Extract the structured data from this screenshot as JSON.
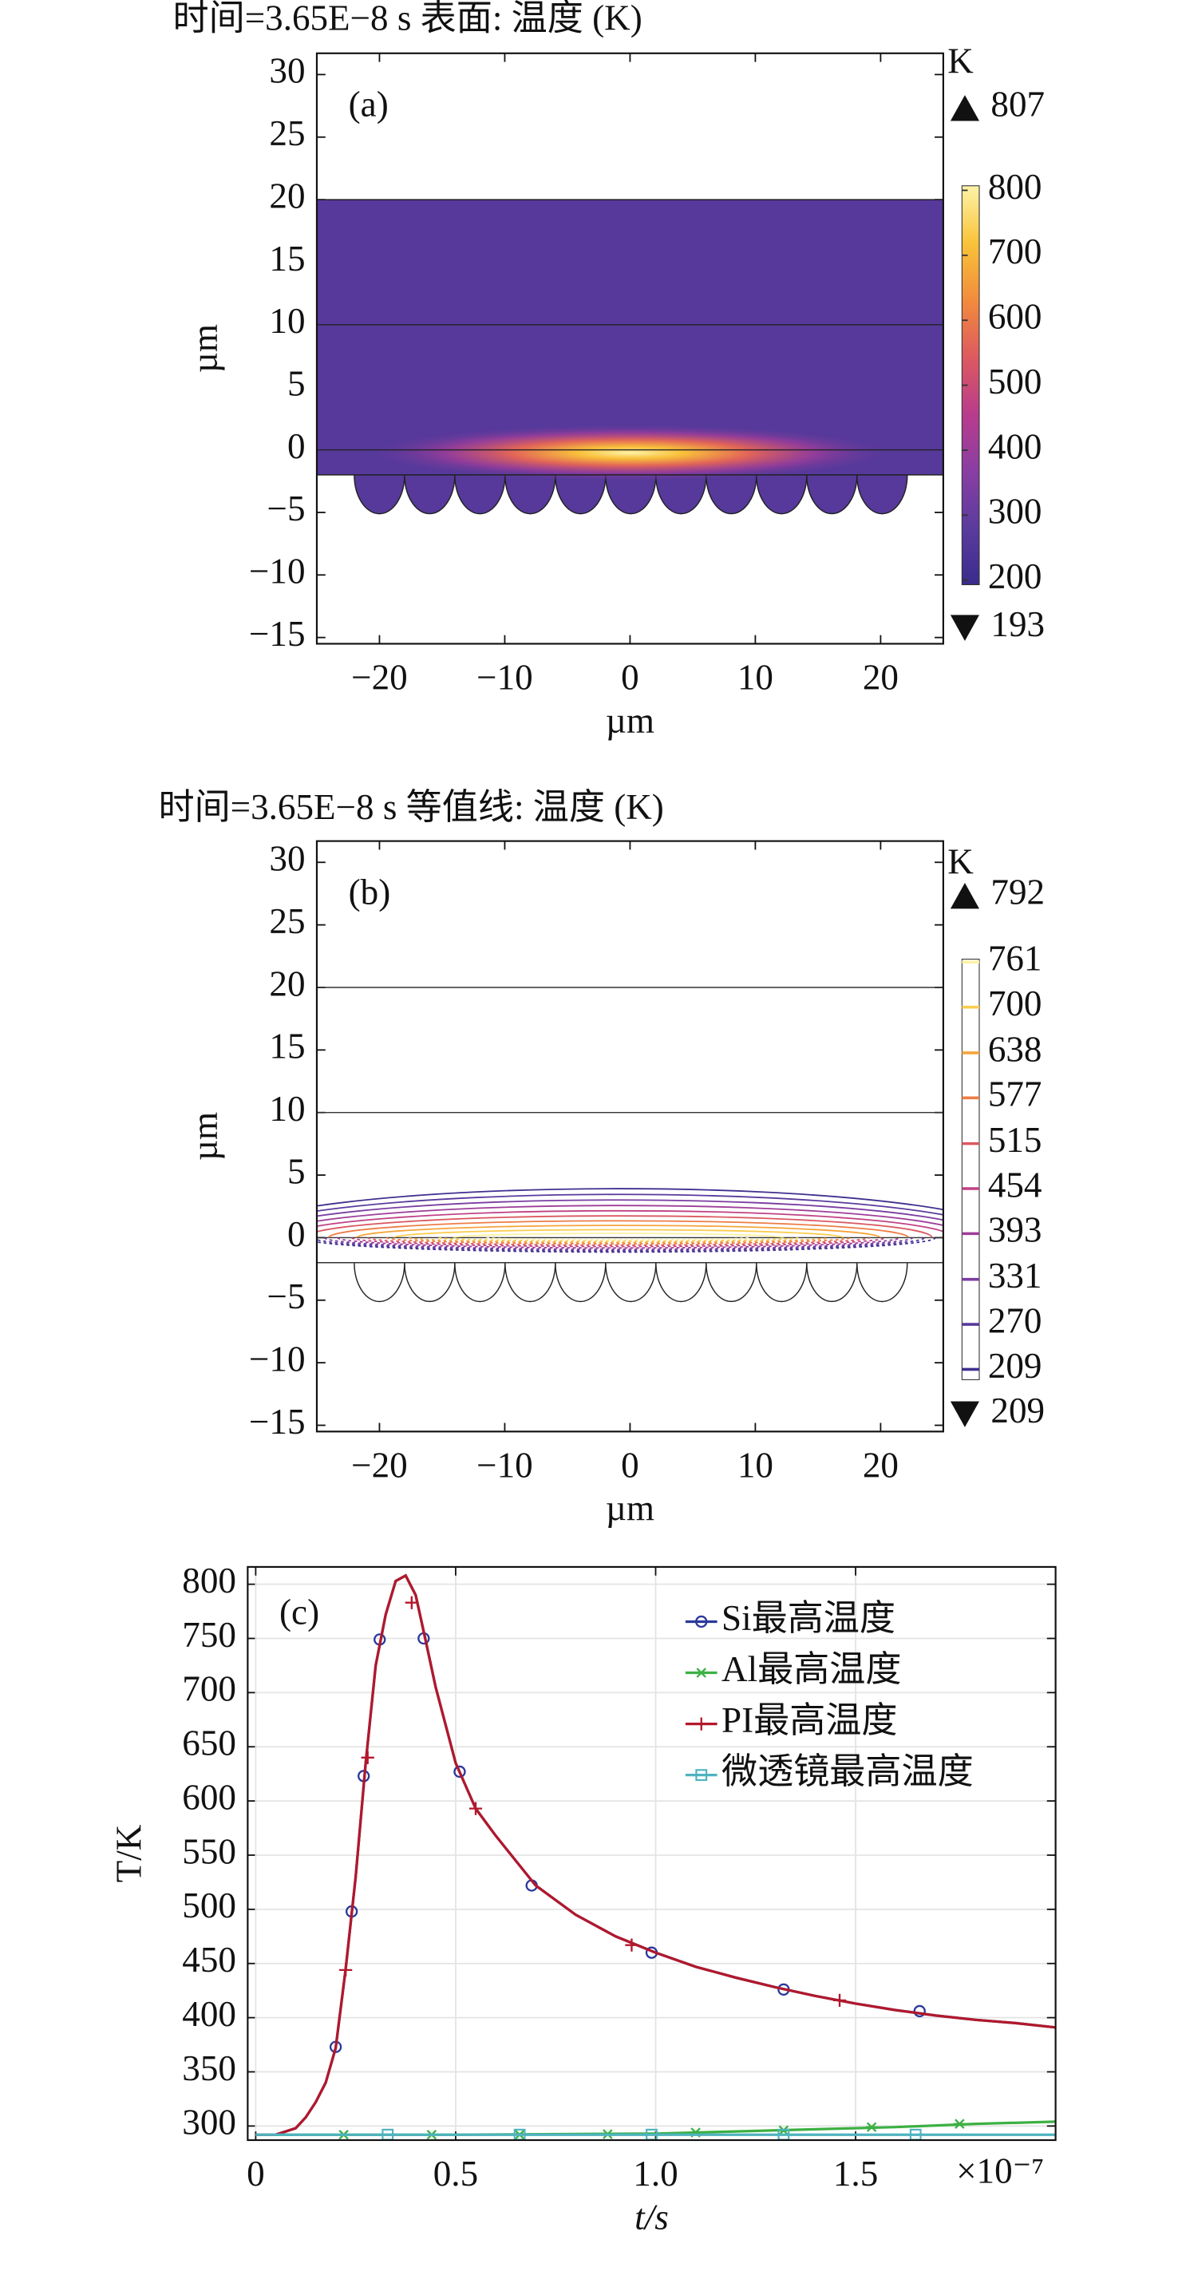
{
  "chart_data": [
    {
      "type": "surface",
      "title": "时间=3.65E−8 s   表面: 温度 (K)",
      "panel_label": "(a)",
      "xlabel": "µm",
      "ylabel": "µm",
      "xlim": [
        -25,
        25
      ],
      "ylim": [
        -15.5,
        31.7
      ],
      "xticks": [
        {
          "value": -20,
          "label": "−20"
        },
        {
          "value": -10,
          "label": "−10"
        },
        0,
        10,
        20
      ],
      "yticks": [
        {
          "value": -15,
          "label": "−15"
        },
        {
          "value": -10,
          "label": "−10"
        },
        {
          "value": -5,
          "label": "−5"
        },
        0,
        5,
        10,
        15,
        20,
        25,
        30
      ],
      "layer_boundaries": [
        20,
        10,
        0,
        -2
      ],
      "colormap": [
        "#3a2c8c",
        "#5b3b9e",
        "#8a3ea3",
        "#b93c8c",
        "#dd5a5f",
        "#f28c3c",
        "#f9c33a",
        "#fdf3a8"
      ],
      "colorbar": {
        "unit": "K",
        "max": 807,
        "min": 193,
        "ticks": [
          200,
          300,
          400,
          500,
          600,
          700,
          800
        ]
      }
    },
    {
      "type": "contour",
      "title": "时间=3.65E−8 s  等值线: 温度 (K)",
      "panel_label": "(b)",
      "xlabel": "µm",
      "ylabel": "µm",
      "xlim": [
        -25,
        25
      ],
      "ylim": [
        -15.5,
        31.7
      ],
      "xticks": [
        {
          "value": -20,
          "label": "−20"
        },
        {
          "value": -10,
          "label": "−10"
        },
        0,
        10,
        20
      ],
      "yticks": [
        {
          "value": -15,
          "label": "−15"
        },
        {
          "value": -10,
          "label": "−10"
        },
        {
          "value": -5,
          "label": "−5"
        },
        0,
        5,
        10,
        15,
        20,
        25,
        30
      ],
      "layer_boundaries": [
        20,
        10,
        0,
        -2
      ],
      "colormap": [
        "#3a2c8c",
        "#5b3b9e",
        "#8a3ea3",
        "#b93c8c",
        "#dd5a5f",
        "#f28c3c",
        "#f9c33a",
        "#fdf3a8"
      ],
      "colorbar": {
        "unit": "K",
        "max": 792,
        "min": 209,
        "clim": [
          195,
          765
        ],
        "ticks": [
          209,
          270,
          331,
          393,
          454,
          515,
          577,
          638,
          700,
          761
        ]
      }
    },
    {
      "type": "line",
      "panel_label": "(c)",
      "xlabel": "t/s",
      "ylabel": "T/K",
      "x_offset_label": "×10⁻⁷",
      "xlim": [
        -0.02,
        2.0
      ],
      "ylim": [
        287,
        816
      ],
      "xticks": [
        0,
        0.5,
        {
          "value": 1,
          "label": "1.0"
        },
        1.5
      ],
      "yticks": [
        300,
        350,
        400,
        450,
        500,
        550,
        600,
        650,
        700,
        750,
        800
      ],
      "grid": true,
      "legend": "upper right",
      "series": [
        {
          "name": "Si最高温度",
          "color": "#2b3a9b",
          "marker": "o",
          "x": [
            0,
            0.05,
            0.1,
            0.125,
            0.15,
            0.175,
            0.2,
            0.225,
            0.25,
            0.275,
            0.3,
            0.325,
            0.35,
            0.375,
            0.4,
            0.425,
            0.45,
            0.5,
            0.55,
            0.6,
            0.7,
            0.8,
            0.9,
            1.0,
            1.1,
            1.2,
            1.3,
            1.4,
            1.5,
            1.6,
            1.7,
            1.8,
            1.9,
            2.0
          ],
          "values": [
            292,
            292,
            298,
            308,
            322,
            340,
            372,
            445,
            530,
            635,
            725,
            772,
            803,
            808,
            790,
            748,
            705,
            635,
            593,
            568,
            522,
            495,
            475,
            460,
            447,
            437,
            428,
            420,
            413,
            407,
            402,
            398,
            395,
            391
          ],
          "markers": {
            "x": [
              0.2,
              0.24,
              0.27,
              0.31,
              0.42,
              0.51,
              0.69,
              0.99,
              1.32,
              1.66
            ],
            "values": [
              373,
              498,
              623,
              749,
              750,
              627,
              522,
              460,
              426,
              406
            ]
          }
        },
        {
          "name": "Al最高温度",
          "color": "#3cb043",
          "marker": "*",
          "x": [
            0,
            0.5,
            1.0,
            1.2,
            1.4,
            1.6,
            1.8,
            2.0
          ],
          "values": [
            292,
            292,
            293,
            295,
            297,
            299,
            302,
            304
          ],
          "markers": {
            "x": [
              0.22,
              0.44,
              0.66,
              0.88,
              1.1,
              1.32,
              1.54,
              1.76
            ],
            "values": [
              292,
              292,
              292,
              292.5,
              294,
              296,
              299,
              302
            ]
          }
        },
        {
          "name": "PI最高温度",
          "color": "#b2182b",
          "marker": "+",
          "x": [
            0,
            0.05,
            0.1,
            0.125,
            0.15,
            0.175,
            0.2,
            0.225,
            0.25,
            0.275,
            0.3,
            0.325,
            0.35,
            0.375,
            0.4,
            0.425,
            0.45,
            0.5,
            0.55,
            0.6,
            0.7,
            0.8,
            0.9,
            1.0,
            1.1,
            1.2,
            1.3,
            1.4,
            1.5,
            1.6,
            1.7,
            1.8,
            1.9,
            2.0
          ],
          "values": [
            292,
            292,
            298,
            308,
            322,
            340,
            372,
            445,
            530,
            635,
            725,
            772,
            803,
            808,
            790,
            748,
            705,
            635,
            593,
            568,
            522,
            495,
            475,
            460,
            447,
            437,
            428,
            420,
            413,
            407,
            402,
            398,
            395,
            391
          ],
          "markers": {
            "x": [
              0.225,
              0.28,
              0.39,
              0.55,
              0.94,
              1.46
            ],
            "values": [
              444,
              640,
              783,
              593,
              467,
              416
            ]
          }
        },
        {
          "name": "微透镜最高温度",
          "color": "#4fb3bf",
          "marker": "s",
          "x": [
            0,
            2.0
          ],
          "values": [
            292,
            292
          ],
          "markers": {
            "x": [
              0.33,
              0.66,
              0.99,
              1.32,
              1.65
            ],
            "values": [
              292,
              292,
              292,
              292,
              292
            ]
          }
        }
      ]
    }
  ]
}
